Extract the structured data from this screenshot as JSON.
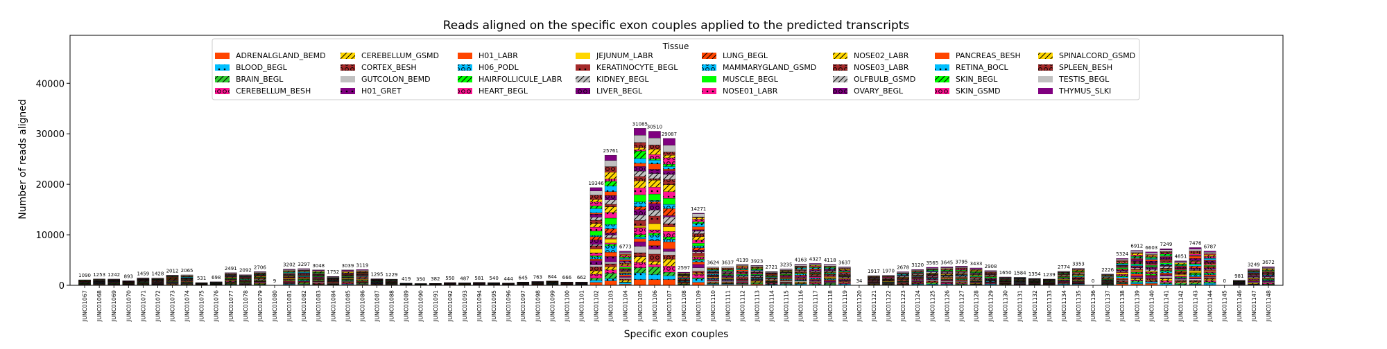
{
  "chart_data": {
    "type": "bar",
    "stacked": true,
    "title": "Reads aligned on the specific exon couples applied to the predicted transcripts",
    "xlabel": "Specific exon couples",
    "ylabel": "Number of reads aligned",
    "ylim": [
      0,
      49500
    ],
    "yticks": [
      0,
      10000,
      20000,
      30000,
      40000
    ],
    "legend": {
      "title": "Tissue",
      "location": "top-center",
      "entries": [
        {
          "name": "ADRENALGLAND_BEMD",
          "color": "#ff4500",
          "hatch": "none"
        },
        {
          "name": "BLOOD_BEGL",
          "color": "#00bfff",
          "hatch": "dot"
        },
        {
          "name": "BRAIN_BEGL",
          "color": "#32cd32",
          "hatch": "slash"
        },
        {
          "name": "CEREBELLUM_BESH",
          "color": "#ff1493",
          "hatch": "circle"
        },
        {
          "name": "CEREBELLUM_GSMD",
          "color": "#ffd700",
          "hatch": "slash"
        },
        {
          "name": "CORTEX_BESH",
          "color": "#a52a2a",
          "hatch": "circle"
        },
        {
          "name": "GUTCOLON_BEMD",
          "color": "#c0c0c0",
          "hatch": "none"
        },
        {
          "name": "H01_GRET",
          "color": "#800080",
          "hatch": "dot"
        },
        {
          "name": "H01_LABR",
          "color": "#ff4500",
          "hatch": "none"
        },
        {
          "name": "H06_PODL",
          "color": "#00bfff",
          "hatch": "circle"
        },
        {
          "name": "HAIRFOLLICULE_LABR",
          "color": "#00ff00",
          "hatch": "slash"
        },
        {
          "name": "HEART_BEGL",
          "color": "#ff1493",
          "hatch": "circle"
        },
        {
          "name": "JEJUNUM_LABR",
          "color": "#ffd700",
          "hatch": "none"
        },
        {
          "name": "KERATINOCYTE_BEGL",
          "color": "#a52a2a",
          "hatch": "dot"
        },
        {
          "name": "KIDNEY_BEGL",
          "color": "#c0c0c0",
          "hatch": "slash"
        },
        {
          "name": "LIVER_BEGL",
          "color": "#800080",
          "hatch": "circle"
        },
        {
          "name": "LUNG_BEGL",
          "color": "#ff4500",
          "hatch": "slash"
        },
        {
          "name": "MAMMARYGLAND_GSMD",
          "color": "#00bfff",
          "hatch": "circle"
        },
        {
          "name": "MUSCLE_BEGL",
          "color": "#00ff00",
          "hatch": "none"
        },
        {
          "name": "NOSE01_LABR",
          "color": "#ff1493",
          "hatch": "dot"
        },
        {
          "name": "NOSE02_LABR",
          "color": "#ffd700",
          "hatch": "slash"
        },
        {
          "name": "NOSE03_LABR",
          "color": "#a52a2a",
          "hatch": "circle"
        },
        {
          "name": "OLFBULB_GSMD",
          "color": "#c0c0c0",
          "hatch": "slash"
        },
        {
          "name": "OVARY_BEGL",
          "color": "#800080",
          "hatch": "circle"
        },
        {
          "name": "PANCREAS_BESH",
          "color": "#ff4500",
          "hatch": "none"
        },
        {
          "name": "RETINA_BOCL",
          "color": "#00bfff",
          "hatch": "dot"
        },
        {
          "name": "SKIN_BEGL",
          "color": "#00ff00",
          "hatch": "slash"
        },
        {
          "name": "SKIN_GSMD",
          "color": "#ff1493",
          "hatch": "circle"
        },
        {
          "name": "SPINALCORD_GSMD",
          "color": "#ffd700",
          "hatch": "slash"
        },
        {
          "name": "SPLEEN_BESH",
          "color": "#a52a2a",
          "hatch": "circle"
        },
        {
          "name": "TESTIS_BEGL",
          "color": "#c0c0c0",
          "hatch": "none"
        },
        {
          "name": "THYMUS_SLKI",
          "color": "#800080",
          "hatch": "none"
        }
      ]
    },
    "categories": [
      "JUNC01067",
      "JUNC01068",
      "JUNC01069",
      "JUNC01070",
      "JUNC01071",
      "JUNC01072",
      "JUNC01073",
      "JUNC01074",
      "JUNC01075",
      "JUNC01076",
      "JUNC01077",
      "JUNC01078",
      "JUNC01079",
      "JUNC01080",
      "JUNC01081",
      "JUNC01082",
      "JUNC01083",
      "JUNC01084",
      "JUNC01085",
      "JUNC01086",
      "JUNC01087",
      "JUNC01088",
      "JUNC01089",
      "JUNC01090",
      "JUNC01091",
      "JUNC01092",
      "JUNC01093",
      "JUNC01094",
      "JUNC01095",
      "JUNC01096",
      "JUNC01097",
      "JUNC01098",
      "JUNC01099",
      "JUNC01100",
      "JUNC01101",
      "JUNC01102",
      "JUNC01103",
      "JUNC01104",
      "JUNC01105",
      "JUNC01106",
      "JUNC01107",
      "JUNC01108",
      "JUNC01109",
      "JUNC01110",
      "JUNC01111",
      "JUNC01112",
      "JUNC01113",
      "JUNC01114",
      "JUNC01115",
      "JUNC01116",
      "JUNC01117",
      "JUNC01118",
      "JUNC01119",
      "JUNC01120",
      "JUNC01121",
      "JUNC01122",
      "JUNC01123",
      "JUNC01124",
      "JUNC01125",
      "JUNC01126",
      "JUNC01127",
      "JUNC01128",
      "JUNC01129",
      "JUNC01130",
      "JUNC01131",
      "JUNC01132",
      "JUNC01133",
      "JUNC01134",
      "JUNC01135",
      "JUNC01136",
      "JUNC01137",
      "JUNC01138",
      "JUNC01139",
      "JUNC01140",
      "JUNC01141",
      "JUNC01142",
      "JUNC01143",
      "JUNC01144",
      "JUNC01145",
      "JUNC01146",
      "JUNC01147",
      "JUNC01148"
    ],
    "totals": [
      1090,
      1253,
      1242,
      893,
      1459,
      1428,
      2012,
      2065,
      531,
      698,
      2491,
      2092,
      2706,
      9,
      3202,
      3297,
      3048,
      1752,
      3039,
      3119,
      1295,
      1229,
      419,
      350,
      382,
      550,
      487,
      581,
      540,
      444,
      645,
      763,
      844,
      666,
      662,
      19346,
      25761,
      6773,
      31085,
      30510,
      29087,
      2597,
      14271,
      3624,
      3637,
      4139,
      3923,
      2721,
      3235,
      4163,
      4327,
      4118,
      3637,
      34,
      1917,
      1970,
      2678,
      3120,
      3565,
      3645,
      3795,
      3433,
      2908,
      1650,
      1584,
      1354,
      1239,
      2774,
      3353,
      0,
      2226,
      5324,
      6912,
      6603,
      7249,
      4851,
      7476,
      6787,
      0,
      981,
      3249,
      3672
    ]
  }
}
